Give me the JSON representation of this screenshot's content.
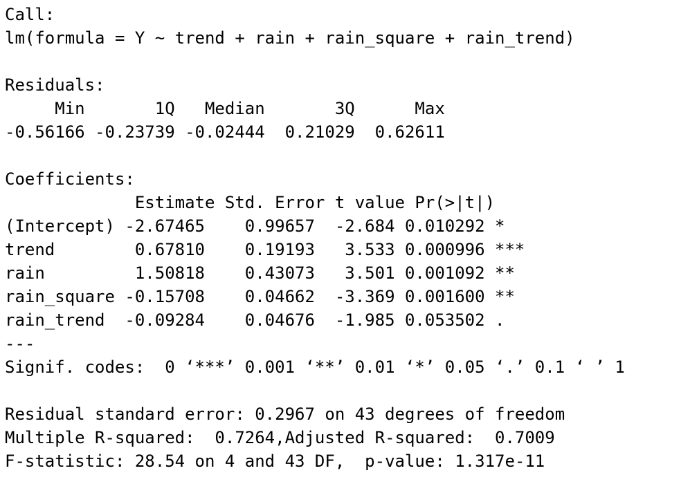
{
  "console": {
    "call_header": "Call:",
    "call_formula": "lm(formula = Y ~ trend + rain + rain_square + rain_trend)",
    "residuals_header": "Residuals:",
    "residuals_labels": "     Min       1Q   Median       3Q      Max ",
    "residuals_values": "-0.56166 -0.23739 -0.02444  0.21029  0.62611 ",
    "coefficients_header": "Coefficients:",
    "coef_columns": "             Estimate Std. Error t value Pr(>|t|)    ",
    "coef_rows": [
      "(Intercept) -2.67465    0.99657  -2.684 0.010292 *  ",
      "trend        0.67810    0.19193   3.533 0.000996 ***",
      "rain         1.50818    0.43073   3.501 0.001092 ** ",
      "rain_square -0.15708    0.04662  -3.369 0.001600 ** ",
      "rain_trend  -0.09284    0.04676  -1.985 0.053502 .  "
    ],
    "separator": "---",
    "signif_codes": "Signif. codes:  0 ‘***’ 0.001 ‘**’ 0.01 ‘*’ 0.05 ‘.’ 0.1 ‘ ’ 1",
    "residual_se": "Residual standard error: 0.2967 on 43 degrees of freedom",
    "r_squared": "Multiple R-squared:  0.7264,Adjusted R-squared:  0.7009 ",
    "f_statistic": "F-statistic: 28.54 on 4 and 43 DF,  p-value: 1.317e-11"
  }
}
